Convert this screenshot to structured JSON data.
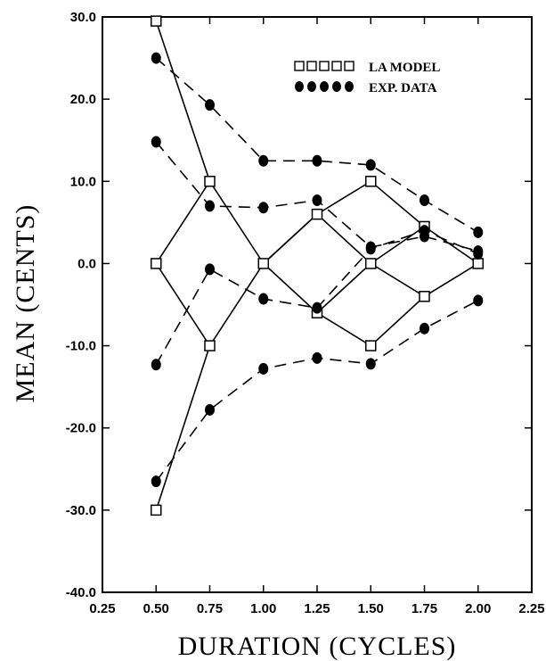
{
  "chart_data": {
    "type": "line",
    "xlabel": "DURATION (CYCLES)",
    "ylabel": "MEAN (CENTS)",
    "xlim": [
      0.25,
      2.25
    ],
    "ylim": [
      -40,
      30
    ],
    "x_ticks": [
      "0.25",
      "0.50",
      "0.75",
      "1.00",
      "1.25",
      "1.50",
      "1.75",
      "2.00",
      "2.25"
    ],
    "y_ticks": [
      "30.0",
      "20.0",
      "10.0",
      "0.0",
      "-10.0",
      "-20.0",
      "-30.0",
      "-40.0"
    ],
    "grid": false,
    "legend": {
      "placement": "top-right",
      "entries": [
        {
          "label": "LA MODEL",
          "marker": "open-square",
          "line": "solid"
        },
        {
          "label": "EXP. DATA",
          "marker": "filled-circle",
          "line": "dashed"
        }
      ]
    },
    "series": [
      {
        "group": "LA MODEL",
        "points": [
          [
            0.5,
            29.5
          ],
          [
            0.75,
            10.0
          ],
          [
            1.0,
            0.0
          ],
          [
            1.25,
            -6.0
          ],
          [
            1.5,
            -10.0
          ],
          [
            1.75,
            -4.0
          ],
          [
            2.0,
            0.0
          ]
        ]
      },
      {
        "group": "LA MODEL",
        "points": [
          [
            0.5,
            -30.0
          ],
          [
            0.75,
            -10.0
          ],
          [
            1.0,
            0.0
          ],
          [
            1.25,
            6.0
          ],
          [
            1.5,
            10.0
          ],
          [
            1.75,
            4.5
          ],
          [
            2.0,
            0.0
          ]
        ]
      },
      {
        "group": "LA MODEL",
        "points": [
          [
            0.5,
            0.0
          ],
          [
            0.75,
            10.0
          ]
        ]
      },
      {
        "group": "LA MODEL",
        "points": [
          [
            0.5,
            0.0
          ],
          [
            0.75,
            -10.0
          ]
        ]
      },
      {
        "group": "LA MODEL",
        "points": [
          [
            1.0,
            0.0
          ],
          [
            1.25,
            6.0
          ]
        ]
      },
      {
        "group": "LA MODEL",
        "points": [
          [
            1.25,
            6.0
          ],
          [
            1.5,
            0.0
          ],
          [
            1.75,
            -4.0
          ]
        ]
      },
      {
        "group": "LA MODEL",
        "points": [
          [
            1.25,
            -6.0
          ],
          [
            1.5,
            0.0
          ],
          [
            1.75,
            4.5
          ]
        ]
      },
      {
        "group": "EXP. DATA",
        "points": [
          [
            0.5,
            25.0
          ],
          [
            0.75,
            19.3
          ],
          [
            1.0,
            12.5
          ],
          [
            1.25,
            12.5
          ],
          [
            1.5,
            12.0
          ],
          [
            1.75,
            7.7
          ],
          [
            2.0,
            3.8
          ]
        ]
      },
      {
        "group": "EXP. DATA",
        "points": [
          [
            0.5,
            14.8
          ],
          [
            0.75,
            7.0
          ],
          [
            1.0,
            6.8
          ],
          [
            1.25,
            7.7
          ],
          [
            1.5,
            2.0
          ],
          [
            1.75,
            3.3
          ],
          [
            2.0,
            1.5
          ]
        ]
      },
      {
        "group": "EXP. DATA",
        "points": [
          [
            0.5,
            -12.3
          ],
          [
            0.75,
            -0.7
          ],
          [
            1.0,
            -4.3
          ],
          [
            1.25,
            -5.4
          ],
          [
            1.5,
            1.8
          ],
          [
            1.75,
            4.0
          ],
          [
            2.0,
            1.2
          ]
        ]
      },
      {
        "group": "EXP. DATA",
        "points": [
          [
            0.5,
            -26.5
          ],
          [
            0.75,
            -17.8
          ],
          [
            1.0,
            -12.8
          ],
          [
            1.25,
            -11.5
          ],
          [
            1.5,
            -12.2
          ],
          [
            1.75,
            -7.9
          ],
          [
            2.0,
            -4.5
          ]
        ]
      }
    ]
  }
}
